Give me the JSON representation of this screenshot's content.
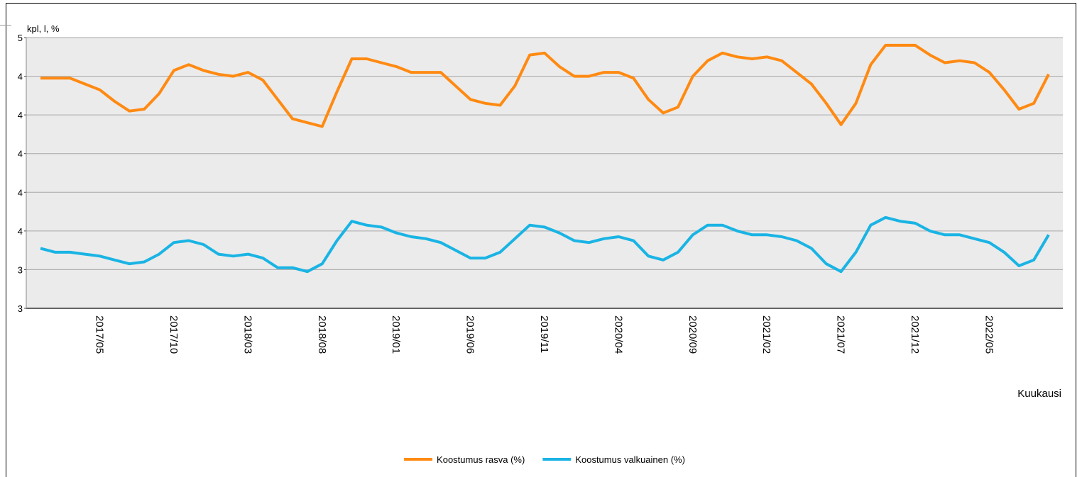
{
  "chart_data": {
    "type": "line",
    "y_label": "kpl, l, %",
    "x_label": "Kuukausi",
    "categories": [
      null,
      null,
      null,
      null,
      "2017/05",
      null,
      null,
      null,
      null,
      "2017/10",
      null,
      null,
      null,
      null,
      "2018/03",
      null,
      null,
      null,
      null,
      "2018/08",
      null,
      null,
      null,
      null,
      "2019/01",
      null,
      null,
      null,
      null,
      "2019/06",
      null,
      null,
      null,
      null,
      "2019/11",
      null,
      null,
      null,
      null,
      "2020/04",
      null,
      null,
      null,
      null,
      "2020/09",
      null,
      null,
      null,
      null,
      "2021/02",
      null,
      null,
      null,
      null,
      "2021/07",
      null,
      null,
      null,
      null,
      "2021/12",
      null,
      null,
      null,
      null,
      "2022/05",
      null,
      null,
      null,
      null
    ],
    "series": [
      {
        "name": "Koostumus rasva (%)",
        "color": "#ff8a12",
        "values": [
          4.39,
          4.39,
          4.39,
          4.36,
          4.33,
          4.27,
          4.22,
          4.23,
          4.31,
          4.43,
          4.46,
          4.43,
          4.41,
          4.4,
          4.42,
          4.38,
          4.28,
          4.18,
          4.16,
          4.14,
          4.32,
          4.49,
          4.49,
          4.47,
          4.45,
          4.42,
          4.42,
          4.42,
          4.35,
          4.28,
          4.26,
          4.25,
          4.35,
          4.51,
          4.52,
          4.45,
          4.4,
          4.4,
          4.42,
          4.42,
          4.39,
          4.28,
          4.21,
          4.24,
          4.4,
          4.48,
          4.52,
          4.5,
          4.49,
          4.5,
          4.48,
          4.42,
          4.36,
          4.26,
          4.15,
          4.26,
          4.46,
          4.56,
          4.56,
          4.56,
          4.51,
          4.47,
          4.48,
          4.47,
          4.42,
          4.33,
          4.23,
          4.26,
          4.41
        ]
      },
      {
        "name": "Koostumus valkuainen (%)",
        "color": "#1ab4e4",
        "values": [
          3.51,
          3.49,
          3.49,
          3.48,
          3.47,
          3.45,
          3.43,
          3.44,
          3.48,
          3.54,
          3.55,
          3.53,
          3.48,
          3.47,
          3.48,
          3.46,
          3.41,
          3.41,
          3.39,
          3.43,
          3.55,
          3.65,
          3.63,
          3.62,
          3.59,
          3.57,
          3.56,
          3.54,
          3.5,
          3.46,
          3.46,
          3.49,
          3.56,
          3.63,
          3.62,
          3.59,
          3.55,
          3.54,
          3.56,
          3.57,
          3.55,
          3.47,
          3.45,
          3.49,
          3.58,
          3.63,
          3.63,
          3.6,
          3.58,
          3.58,
          3.57,
          3.55,
          3.51,
          3.43,
          3.39,
          3.49,
          3.63,
          3.67,
          3.65,
          3.64,
          3.6,
          3.58,
          3.58,
          3.56,
          3.54,
          3.49,
          3.42,
          3.45,
          3.58
        ]
      }
    ],
    "ylim": [
      3.2,
      4.6
    ],
    "yticks": [
      {
        "value": 3.2,
        "label": "3"
      },
      {
        "value": 3.4,
        "label": "3"
      },
      {
        "value": 3.6,
        "label": "4"
      },
      {
        "value": 3.8,
        "label": "4"
      },
      {
        "value": 4.0,
        "label": "4"
      },
      {
        "value": 4.2,
        "label": "4"
      },
      {
        "value": 4.4,
        "label": "4"
      },
      {
        "value": 4.6,
        "label": "5"
      }
    ],
    "grid": true,
    "legend": "bottom"
  }
}
